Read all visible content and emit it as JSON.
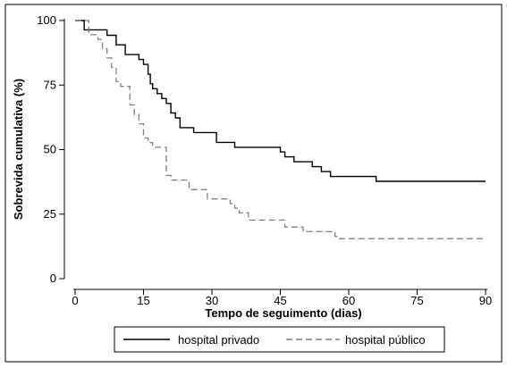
{
  "chart_data": {
    "type": "line",
    "xlabel": "Tempo de seguimento (dias)",
    "ylabel": "Sobrevida cumulativa (%)",
    "xlim": [
      0,
      90
    ],
    "ylim": [
      0,
      100
    ],
    "xticks": [
      "0",
      "15",
      "30",
      "45",
      "60",
      "75",
      "90"
    ],
    "yticks": [
      "0",
      "25",
      "50",
      "75",
      "100"
    ],
    "grid": false,
    "step": true,
    "legend_position": "bottom",
    "series": [
      {
        "name": "hospital privado",
        "color": "#000000",
        "dash": "solid",
        "x": [
          0,
          2,
          7,
          9,
          11,
          14,
          15,
          16,
          16.5,
          17,
          18,
          19,
          20,
          21,
          22,
          23,
          26,
          31,
          35,
          36,
          45,
          46,
          48,
          52,
          54,
          55,
          56,
          66,
          90
        ],
        "y": [
          100,
          96.4,
          94.3,
          90.6,
          86.8,
          84.9,
          83,
          79.2,
          75.5,
          73.6,
          71.7,
          69.8,
          67.9,
          64.2,
          62.3,
          58.5,
          56.6,
          52.8,
          50.9,
          50.9,
          49.1,
          47.2,
          45.3,
          43.4,
          41.5,
          41.5,
          39.6,
          37.7,
          37.7
        ]
      },
      {
        "name": "hospital público",
        "color": "#808080",
        "dash": "dashed",
        "x": [
          0,
          3,
          5,
          6,
          7,
          8,
          9,
          10,
          12,
          13,
          14,
          15,
          16,
          17,
          20,
          21,
          22,
          25,
          29,
          34,
          35,
          36,
          38,
          46,
          50,
          57,
          58,
          90
        ],
        "y": [
          100,
          94.5,
          92.7,
          89.1,
          85.5,
          81.8,
          76.4,
          74.5,
          67.3,
          63.6,
          60,
          54.5,
          52.7,
          50.9,
          40,
          38.2,
          38.2,
          34.5,
          30.9,
          29.1,
          27.3,
          25.5,
          22.7,
          20,
          18.2,
          16.4,
          15.5,
          15.5
        ]
      }
    ]
  }
}
